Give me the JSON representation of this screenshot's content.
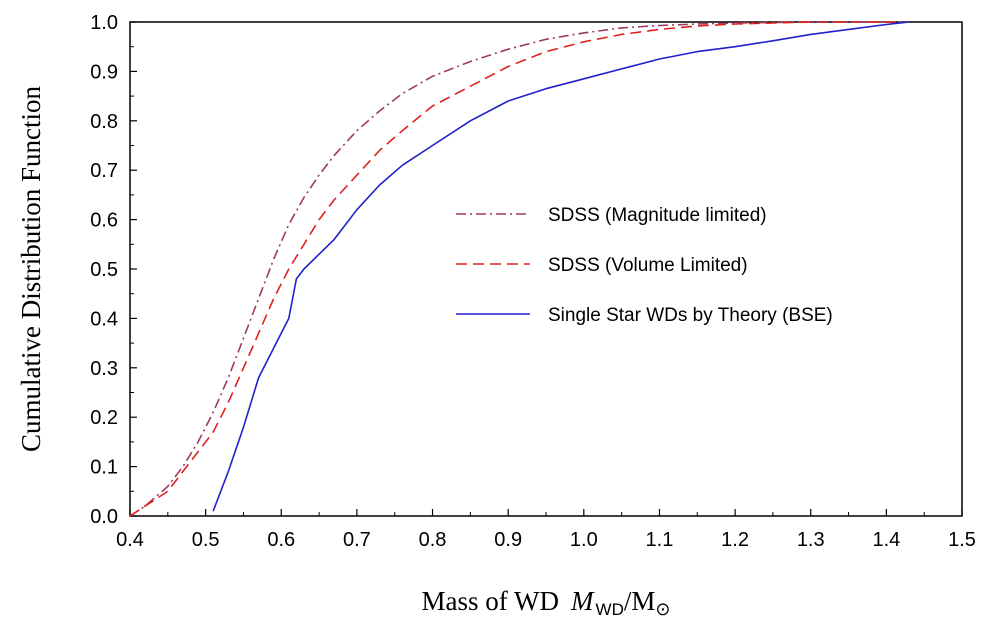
{
  "chart_data": {
    "type": "line",
    "title": "",
    "xlabel": {
      "prefix": "Mass of WD",
      "symbol": "M",
      "subscript": "WD",
      "suffix": "/M",
      "sun_symbol": "⊙"
    },
    "ylabel": "Cumulative Distribution Function",
    "xlim": [
      0.4,
      1.5
    ],
    "ylim": [
      0.0,
      1.0
    ],
    "x_ticks": [
      0.4,
      0.5,
      0.6,
      0.7,
      0.8,
      0.9,
      1.0,
      1.1,
      1.2,
      1.3,
      1.4,
      1.5
    ],
    "x_tick_labels": [
      "0.4",
      "0.5",
      "0.6",
      "0.7",
      "0.8",
      "0.9",
      "1.0",
      "1.1",
      "1.2",
      "1.3",
      "1.4",
      "1.5"
    ],
    "y_ticks": [
      0.0,
      0.1,
      0.2,
      0.3,
      0.4,
      0.5,
      0.6,
      0.7,
      0.8,
      0.9,
      1.0
    ],
    "y_tick_labels": [
      "0.0",
      "0.1",
      "0.2",
      "0.3",
      "0.4",
      "0.5",
      "0.6",
      "0.7",
      "0.8",
      "0.9",
      "1.0"
    ],
    "grid": false,
    "legend_position": "center-right",
    "series": [
      {
        "name": "SDSS (Magnitude limited)",
        "color": "#9e3a5c",
        "style": "dashdot",
        "x": [
          0.4,
          0.42,
          0.45,
          0.47,
          0.49,
          0.51,
          0.53,
          0.55,
          0.57,
          0.59,
          0.61,
          0.63,
          0.65,
          0.67,
          0.7,
          0.73,
          0.76,
          0.8,
          0.85,
          0.9,
          0.95,
          1.0,
          1.05,
          1.1,
          1.15,
          1.2,
          1.3,
          1.42
        ],
        "y": [
          0.0,
          0.02,
          0.06,
          0.1,
          0.15,
          0.21,
          0.28,
          0.36,
          0.44,
          0.52,
          0.59,
          0.645,
          0.69,
          0.73,
          0.78,
          0.82,
          0.855,
          0.89,
          0.92,
          0.945,
          0.965,
          0.978,
          0.988,
          0.993,
          0.996,
          0.998,
          1.0,
          1.0
        ]
      },
      {
        "name": "SDSS (Volume Limited)",
        "color": "#e02020",
        "style": "dashed",
        "x": [
          0.4,
          0.42,
          0.45,
          0.47,
          0.49,
          0.51,
          0.53,
          0.55,
          0.57,
          0.59,
          0.61,
          0.63,
          0.65,
          0.67,
          0.7,
          0.73,
          0.76,
          0.8,
          0.85,
          0.9,
          0.95,
          1.0,
          1.05,
          1.1,
          1.15,
          1.2,
          1.25,
          1.3,
          1.42
        ],
        "y": [
          0.0,
          0.02,
          0.05,
          0.09,
          0.13,
          0.17,
          0.23,
          0.3,
          0.37,
          0.44,
          0.5,
          0.55,
          0.6,
          0.64,
          0.69,
          0.74,
          0.78,
          0.83,
          0.87,
          0.91,
          0.94,
          0.96,
          0.975,
          0.985,
          0.992,
          0.996,
          0.998,
          1.0,
          1.0
        ]
      },
      {
        "name": "Single Star WDs by Theory (BSE)",
        "color": "#2020cc",
        "style": "solid",
        "x": [
          0.51,
          0.53,
          0.55,
          0.57,
          0.59,
          0.61,
          0.62,
          0.63,
          0.65,
          0.67,
          0.7,
          0.73,
          0.76,
          0.8,
          0.85,
          0.9,
          0.95,
          1.0,
          1.05,
          1.1,
          1.15,
          1.2,
          1.25,
          1.3,
          1.35,
          1.4,
          1.43
        ],
        "y": [
          0.01,
          0.09,
          0.18,
          0.28,
          0.34,
          0.4,
          0.48,
          0.5,
          0.53,
          0.56,
          0.62,
          0.67,
          0.71,
          0.75,
          0.8,
          0.84,
          0.865,
          0.885,
          0.905,
          0.925,
          0.94,
          0.95,
          0.962,
          0.975,
          0.985,
          0.995,
          1.0
        ]
      }
    ]
  }
}
